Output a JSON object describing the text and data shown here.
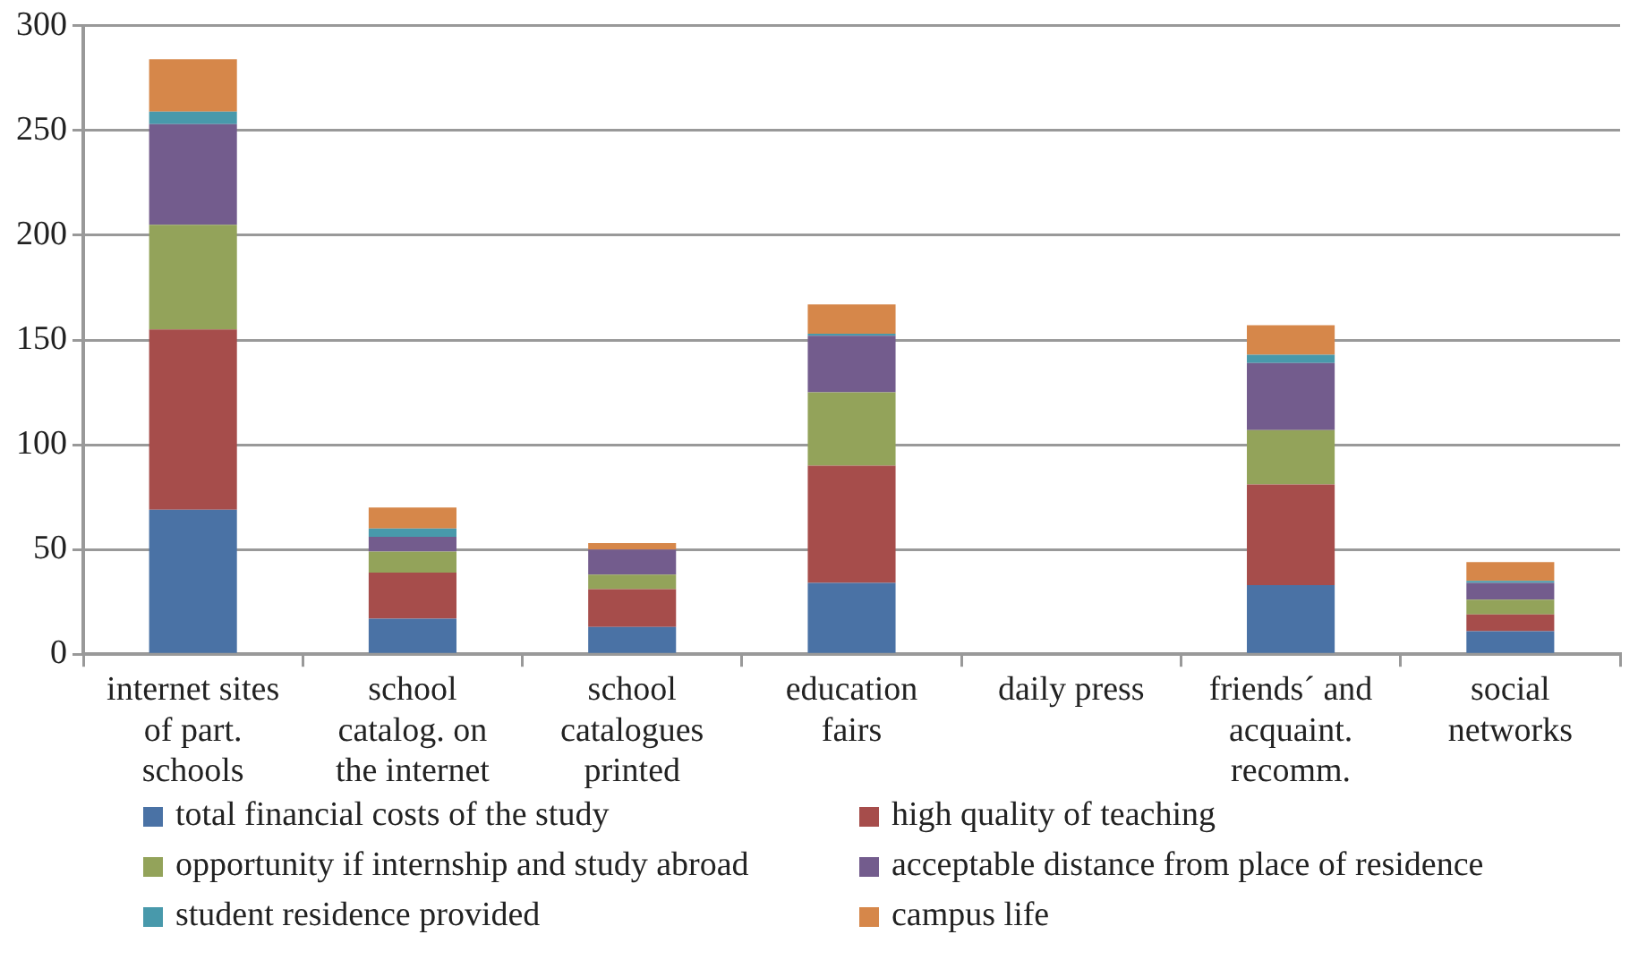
{
  "chart_data": {
    "type": "bar",
    "stacked": true,
    "categories": [
      "internet sites\nof part.\nschools",
      "school\ncatalog. on\nthe internet",
      "school\ncatalogues\nprinted",
      "education\nfairs",
      "daily press",
      "friends´ and\nacquaint.\nrecomm.",
      "social\nnetworks"
    ],
    "series": [
      {
        "name": "total financial costs of the study",
        "color": "#4a72a5",
        "values": [
          69,
          17,
          13,
          34,
          0,
          33,
          11
        ]
      },
      {
        "name": "high quality of teaching",
        "color": "#a64d4b",
        "values": [
          86,
          22,
          18,
          56,
          0,
          48,
          8
        ]
      },
      {
        "name": "opportunity if internship and study abroad",
        "color": "#93a35a",
        "values": [
          50,
          10,
          7,
          35,
          0,
          26,
          7
        ]
      },
      {
        "name": "acceptable distance from place of residence",
        "color": "#735c8d",
        "values": [
          48,
          7,
          12,
          27,
          0,
          32,
          8
        ]
      },
      {
        "name": "student residence provided",
        "color": "#4899ab",
        "values": [
          6,
          4,
          0,
          1,
          0,
          4,
          1
        ]
      },
      {
        "name": "campus life",
        "color": "#d6874a",
        "values": [
          25,
          10,
          3,
          14,
          0,
          14,
          9
        ]
      }
    ],
    "ylim": [
      0,
      300
    ],
    "yticks": [
      0,
      50,
      100,
      150,
      200,
      250,
      300
    ],
    "grid": "y",
    "legend": "bottom"
  }
}
